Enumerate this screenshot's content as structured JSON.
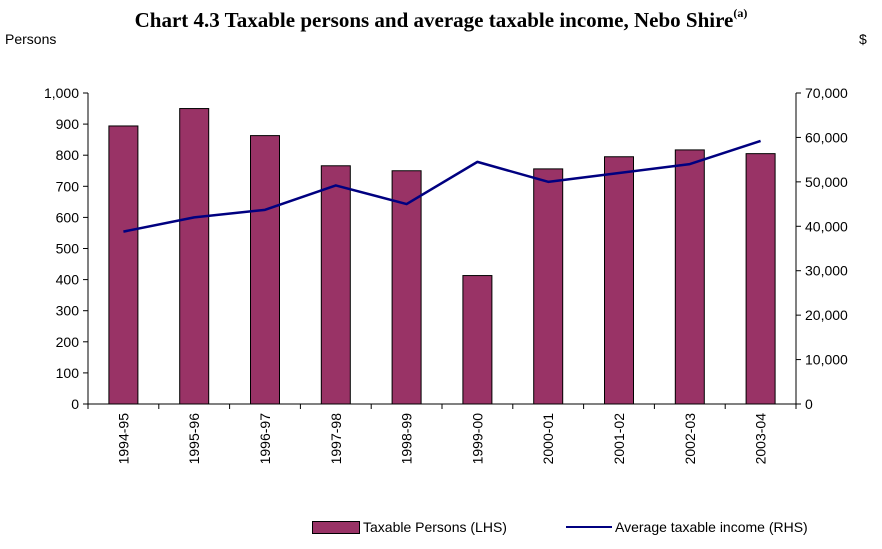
{
  "title": "Chart 4.3 Taxable persons and average taxable income, Nebo Shire",
  "title_superscript": "(a)",
  "colors": {
    "bar": "#993366",
    "line": "#000080"
  },
  "chart_data": {
    "type": "bar",
    "categories": [
      "1994-95",
      "1995-96",
      "1996-97",
      "1997-98",
      "1998-99",
      "1999-00",
      "2000-01",
      "2001-02",
      "2002-03",
      "2003-04"
    ],
    "series": [
      {
        "name": "Taxable Persons (LHS)",
        "type": "bar",
        "axis": "left",
        "values": [
          894,
          950,
          863,
          766,
          750,
          413,
          756,
          795,
          817,
          805
        ]
      },
      {
        "name": "Average taxable income (RHS)",
        "type": "line",
        "axis": "right",
        "values": [
          38800,
          42000,
          43700,
          49200,
          45000,
          54500,
          50000,
          52000,
          54000,
          59200
        ]
      }
    ],
    "ylabel": "Persons",
    "y2label": "$",
    "ylim": [
      0,
      1000
    ],
    "y2lim": [
      0,
      70000
    ],
    "yticks": [
      "0",
      "100",
      "200",
      "300",
      "400",
      "500",
      "600",
      "700",
      "800",
      "900",
      "1,000"
    ],
    "y2ticks": [
      "0",
      "10,000",
      "20,000",
      "30,000",
      "40,000",
      "50,000",
      "60,000",
      "70,000"
    ],
    "grid": false,
    "legend_position": "bottom-right"
  }
}
